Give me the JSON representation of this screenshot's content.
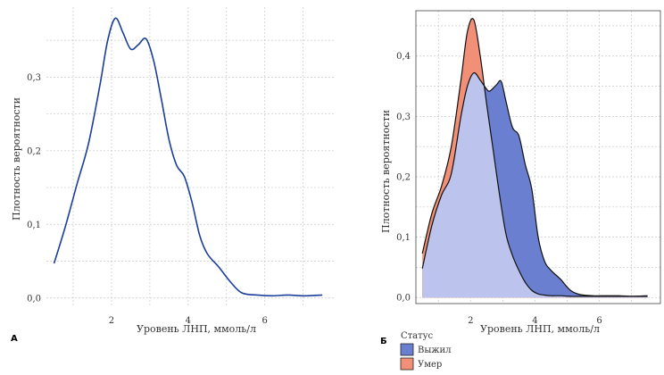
{
  "chart_data": [
    {
      "type": "area",
      "panel_label": "А",
      "xlabel": "Уровень ЛНП, ммоль/л",
      "ylabel": "Плотность вероятности",
      "xlim": [
        0.3,
        7.8
      ],
      "ylim": [
        -0.01,
        0.395
      ],
      "x_ticks": [
        2,
        4,
        6
      ],
      "y_ticks": [
        0.0,
        0.1,
        0.2,
        0.3
      ],
      "y_tick_labels": [
        "0,0",
        "0,1",
        "0,2",
        "0,3"
      ],
      "grid": true,
      "frame": false,
      "line_color": "#1a3e9a",
      "series": [
        {
          "x": [
            0.5,
            0.8,
            1.1,
            1.4,
            1.7,
            1.9,
            2.1,
            2.3,
            2.5,
            2.7,
            2.9,
            3.1,
            3.3,
            3.5,
            3.7,
            3.9,
            4.1,
            4.3,
            4.5,
            4.8,
            5.1,
            5.4,
            5.8,
            6.2,
            6.6,
            7.0,
            7.5
          ],
          "values": [
            0.047,
            0.098,
            0.155,
            0.21,
            0.29,
            0.35,
            0.38,
            0.36,
            0.338,
            0.344,
            0.352,
            0.322,
            0.27,
            0.215,
            0.18,
            0.165,
            0.13,
            0.085,
            0.06,
            0.042,
            0.022,
            0.007,
            0.004,
            0.003,
            0.004,
            0.003,
            0.004
          ]
        }
      ]
    },
    {
      "type": "area",
      "panel_label": "Б",
      "xlabel": "Уровень ЛНП, ммоль/л",
      "ylabel": "Плотность вероятности",
      "xlim": [
        0.3,
        7.9
      ],
      "ylim": [
        -0.01,
        0.475
      ],
      "x_ticks": [
        2,
        4,
        6
      ],
      "y_ticks": [
        0.0,
        0.1,
        0.2,
        0.3,
        0.4
      ],
      "y_tick_labels": [
        "0,0",
        "0,1",
        "0,2",
        "0,3",
        "0,4"
      ],
      "grid": true,
      "frame": true,
      "legend": {
        "title": "Статус",
        "placement": "bottom-left"
      },
      "series": [
        {
          "name": "Выжил",
          "color": "#6b7fd0",
          "overlap_color": "#bcc3ec",
          "x": [
            0.5,
            0.8,
            1.1,
            1.4,
            1.7,
            1.9,
            2.1,
            2.3,
            2.5,
            2.6,
            2.8,
            2.95,
            3.1,
            3.3,
            3.5,
            3.7,
            3.9,
            4.1,
            4.3,
            4.5,
            4.8,
            5.1,
            5.4,
            5.8,
            6.2,
            6.6,
            7.0,
            7.5
          ],
          "values": [
            0.048,
            0.12,
            0.17,
            0.205,
            0.3,
            0.35,
            0.372,
            0.36,
            0.345,
            0.342,
            0.352,
            0.358,
            0.325,
            0.282,
            0.268,
            0.22,
            0.18,
            0.1,
            0.06,
            0.045,
            0.03,
            0.012,
            0.005,
            0.003,
            0.003,
            0.003,
            0.002,
            0.003
          ]
        },
        {
          "name": "Умер",
          "color": "#f28f77",
          "x": [
            0.5,
            0.8,
            1.1,
            1.4,
            1.7,
            1.9,
            2.1,
            2.3,
            2.5,
            2.7,
            2.9,
            3.1,
            3.3,
            3.5,
            3.7,
            3.9,
            4.1,
            4.3,
            4.5,
            4.8,
            5.1,
            5.4,
            5.8,
            6.2,
            6.6,
            7.0,
            7.5
          ],
          "values": [
            0.073,
            0.14,
            0.185,
            0.25,
            0.36,
            0.44,
            0.46,
            0.4,
            0.32,
            0.245,
            0.17,
            0.105,
            0.07,
            0.045,
            0.025,
            0.012,
            0.006,
            0.004,
            0.003,
            0.003,
            0.002,
            0.002,
            0.002,
            0.002,
            0.002,
            0.002,
            0.002
          ]
        }
      ]
    }
  ]
}
